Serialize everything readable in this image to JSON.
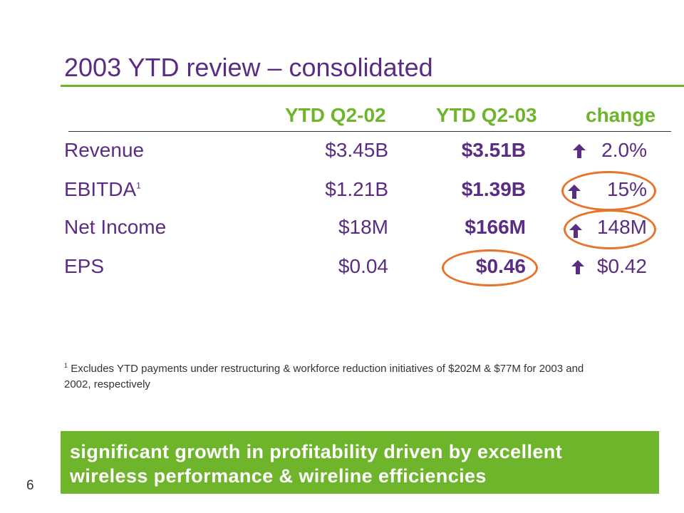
{
  "slide": {
    "title": "2003 YTD review – consolidated",
    "page_number": "6",
    "columns": {
      "col1": "YTD Q2-02",
      "col2": "YTD Q2-03",
      "col3": "change"
    },
    "rows": [
      {
        "label": "Revenue",
        "footnote_mark": "",
        "q2_02": "$3.45B",
        "q2_03": "$3.51B",
        "change": "2.0%"
      },
      {
        "label": "EBITDA",
        "footnote_mark": "1",
        "q2_02": "$1.21B",
        "q2_03": "$1.39B",
        "change": "15%"
      },
      {
        "label": "Net Income",
        "footnote_mark": "",
        "q2_02": "$18M",
        "q2_03": "$166M",
        "change": "148M"
      },
      {
        "label": "EPS",
        "footnote_mark": "",
        "q2_02": "$0.04",
        "q2_03": "$0.46",
        "change": "$0.42"
      }
    ],
    "footnote": {
      "mark": "1",
      "text": "Excludes YTD payments under restructuring & workforce reduction initiatives of $202M & $77M for 2003 and 2002, respectively"
    },
    "banner": {
      "line1": "significant growth in profitability driven by excellent",
      "line2": "wireless performance & wireline efficiencies"
    },
    "icons": {
      "change_indicator": "up-arrow-icon",
      "highlight": "circle-highlight"
    },
    "colors": {
      "text": "#5a2c83",
      "accent_green": "#6fb52c",
      "highlight_orange": "#e8742a",
      "banner_text": "#ffffff"
    }
  }
}
